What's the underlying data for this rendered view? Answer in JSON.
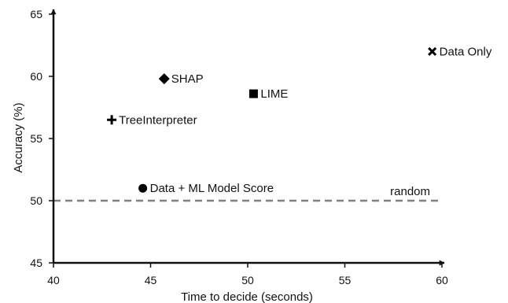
{
  "chart_data": {
    "type": "scatter",
    "xlabel": "Time to decide (seconds)",
    "ylabel": "Accuracy (%)",
    "xlim": [
      40,
      60
    ],
    "ylim": [
      45,
      65
    ],
    "xticks": [
      40,
      45,
      50,
      55,
      60
    ],
    "yticks": [
      45,
      50,
      55,
      60,
      65
    ],
    "grid": false,
    "points": [
      {
        "label": "Data Only",
        "x": 59.5,
        "y": 62.0,
        "marker": "x"
      },
      {
        "label": "SHAP",
        "x": 45.7,
        "y": 59.8,
        "marker": "diamond"
      },
      {
        "label": "LIME",
        "x": 50.3,
        "y": 58.6,
        "marker": "square"
      },
      {
        "label": "TreeInterpreter",
        "x": 43.0,
        "y": 56.5,
        "marker": "plus"
      },
      {
        "label": "Data + ML Model Score",
        "x": 44.6,
        "y": 51.0,
        "marker": "circle"
      }
    ],
    "reference_line": {
      "label": "random",
      "y": 50,
      "style": "dashed",
      "color": "#808080"
    }
  },
  "colors": {
    "marker": "#000000",
    "axis": "#111111",
    "reference": "#808080"
  }
}
